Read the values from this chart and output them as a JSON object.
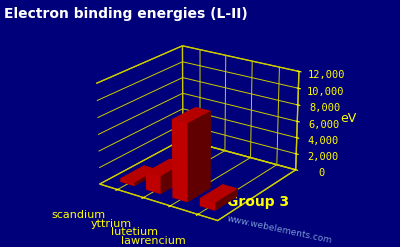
{
  "title": "Electron binding energies (L-II)",
  "elements": [
    "scandium",
    "yttrium",
    "lutetium",
    "lawrencium"
  ],
  "values": [
    438,
    2156,
    9244,
    926
  ],
  "ylabel": "eV",
  "group_label": "Group 3",
  "ylim": [
    0,
    12000
  ],
  "yticks": [
    0,
    2000,
    4000,
    6000,
    8000,
    10000,
    12000
  ],
  "ytick_labels": [
    "0",
    "2,000",
    "4,000",
    "6,000",
    "8,000",
    "10,000",
    "12,000"
  ],
  "bar_color_face": "#dd0000",
  "bar_color_side": "#880000",
  "bar_color_top": "#ff4444",
  "background_color": "#00007a",
  "grid_color": "#cccc00",
  "text_color": "#ffff00",
  "title_color": "#ffffff",
  "watermark": "www.webelements.com",
  "title_fontsize": 10,
  "label_fontsize": 8,
  "tick_fontsize": 7.5,
  "elev": 22,
  "azim": -55
}
